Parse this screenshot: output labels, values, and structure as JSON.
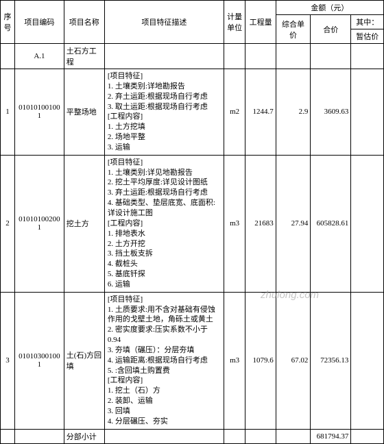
{
  "header": {
    "seq": "序号",
    "code": "项目编码",
    "name": "项目名称",
    "desc": "项目特征描述",
    "unit": "计量单位",
    "qty": "工程量",
    "amount_group": "金额（元）",
    "unit_price": "综合单价",
    "total": "合价",
    "sub_group": "其中：",
    "est": "暂估价"
  },
  "category_row": {
    "code": "A.1",
    "name": "土石方工程"
  },
  "rows": [
    {
      "seq": "1",
      "code": "010101001001",
      "name": "平整场地",
      "desc": "[项目特征]\n1. 土壤类别:详地勘报告\n2. 弃土运距:根据现场自行考虑\n3. 取土运距:根据现场自行考虑\n[工程内容]\n1. 土方挖填\n2. 场地平整\n3. 运输",
      "unit": "m2",
      "qty": "1244.7",
      "unit_price": "2.9",
      "total": "3609.63"
    },
    {
      "seq": "2",
      "code": "010101002001",
      "name": "挖土方",
      "desc": "[项目特征]\n1. 土壤类别:详见地勘报告\n2. 挖土平均厚度:详见设计图纸\n3. 弃土运距:根据现场自行考虑\n4. 基础类型、垫层底宽、底面积:详设计施工图\n[工程内容]\n1. 排地表水\n2. 土方开挖\n3. 挡土板支拆\n4. 截桩头\n5. 基底钎探\n6. 运输",
      "unit": "m3",
      "qty": "21683",
      "unit_price": "27.94",
      "total": "605828.61"
    },
    {
      "seq": "3",
      "code": "010103001001",
      "name": "土(石)方回填",
      "desc": "[项目特征]\n1. 土质要求:用不含对基础有侵蚀作用的戈壁土地，角砾土或黄土\n2. 密实度要求:压实系数不小于0.94\n3. 夯填（碾压）：分层夯填\n4. 运输距离:根据现场自行考虑\n5. :含回填土购置费\n[工程内容]\n1. 挖土（石）方\n2. 装卸、运输\n3. 回填\n4. 分层碾压、夯实",
      "unit": "m3",
      "qty": "1079.6",
      "unit_price": "67.02",
      "total": "72356.13"
    }
  ],
  "subtotal": {
    "label": "分部小计",
    "total": "681794.37"
  },
  "watermark": "zhulong.com"
}
